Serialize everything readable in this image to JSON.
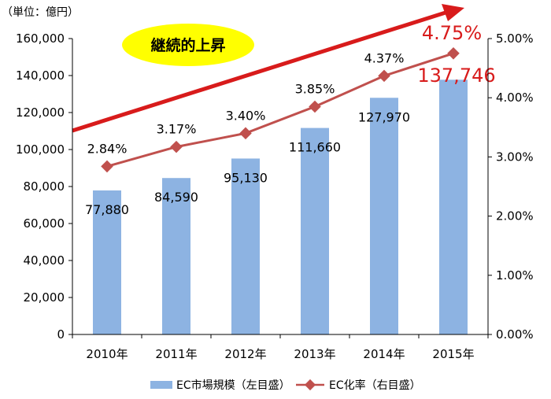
{
  "chart_data": {
    "type": "bar",
    "unit_label": "（単位：億円）",
    "categories": [
      "2010年",
      "2011年",
      "2012年",
      "2013年",
      "2014年",
      "2015年"
    ],
    "bar_series": {
      "name": "EC市場規模（左目盛）",
      "values": [
        77880,
        84590,
        95130,
        111660,
        127970,
        137746
      ],
      "labels": [
        "77,880",
        "84,590",
        "95,130",
        "111,660",
        "127,970",
        "137,746"
      ],
      "color": "#8db3e2"
    },
    "line_series": {
      "name": "EC化率（右目盛）",
      "values": [
        2.84,
        3.17,
        3.4,
        3.85,
        4.37,
        4.75
      ],
      "labels": [
        "2.84%",
        "3.17%",
        "3.40%",
        "3.85%",
        "4.37%",
        "4.75%"
      ],
      "color": "#c0504d"
    },
    "y_left": {
      "range": [
        0,
        160000
      ],
      "ticks": [
        0,
        20000,
        40000,
        60000,
        80000,
        100000,
        120000,
        140000,
        160000
      ],
      "tick_labels": [
        "0",
        "20,000",
        "40,000",
        "60,000",
        "80,000",
        "100,000",
        "120,000",
        "140,000",
        "160,000"
      ]
    },
    "y_right": {
      "range": [
        0,
        5
      ],
      "ticks": [
        0,
        1,
        2,
        3,
        4,
        5
      ],
      "tick_labels": [
        "0.00%",
        "1.00%",
        "2.00%",
        "3.00%",
        "4.00%",
        "5.00%"
      ]
    },
    "highlight_color": "#d81b1b",
    "callout": {
      "text": "継続的上昇",
      "color": "#ffff00"
    },
    "legend_position": "bottom",
    "grid": false
  }
}
